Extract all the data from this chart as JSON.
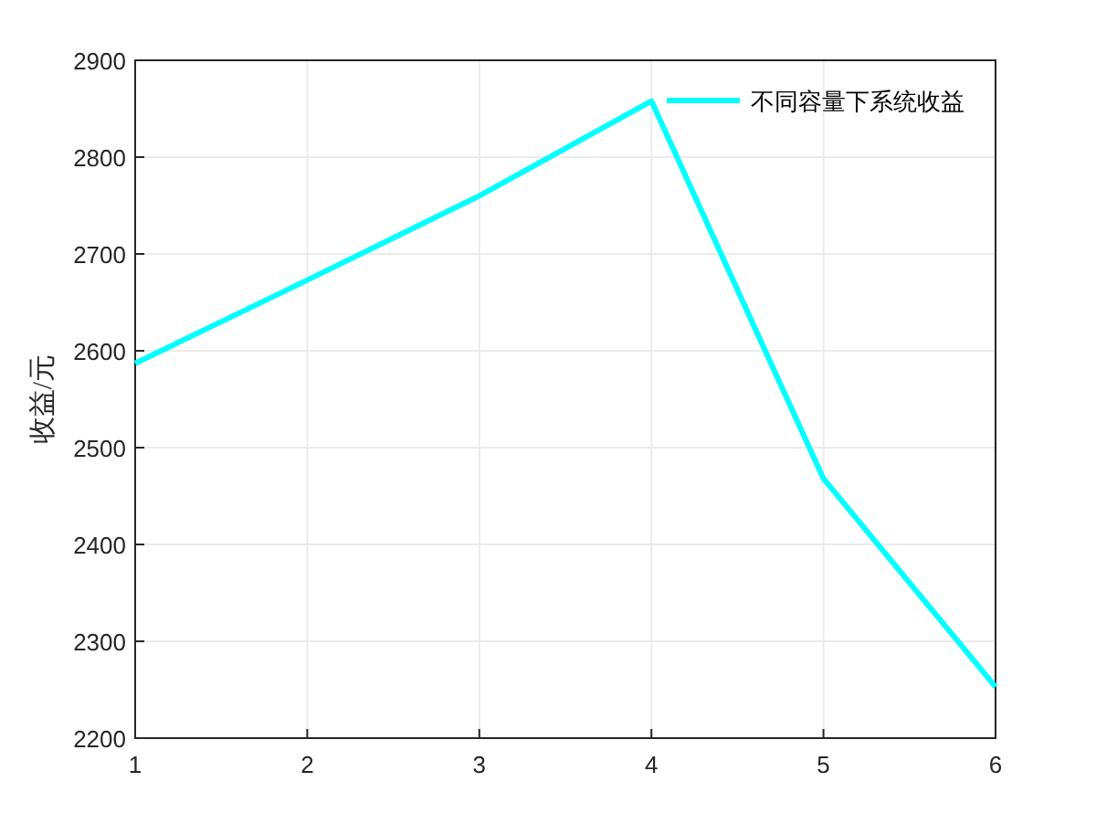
{
  "chart_data": {
    "type": "line",
    "ylabel": "收益/元",
    "x": [
      1,
      2,
      3,
      4,
      5,
      6
    ],
    "series": [
      {
        "name": "不同容量下系统收益",
        "color": "#00ffff",
        "values": [
          2587,
          2673,
          2760,
          2858,
          2468,
          2253
        ]
      }
    ],
    "xlim": [
      1,
      6
    ],
    "xticks": [
      1,
      2,
      3,
      4,
      5,
      6
    ],
    "ylim": [
      2200,
      2900
    ],
    "yticks": [
      2200,
      2300,
      2400,
      2500,
      2600,
      2700,
      2800,
      2900
    ],
    "grid": true,
    "legend": "top right",
    "marker": "none",
    "line_style": "solid"
  }
}
